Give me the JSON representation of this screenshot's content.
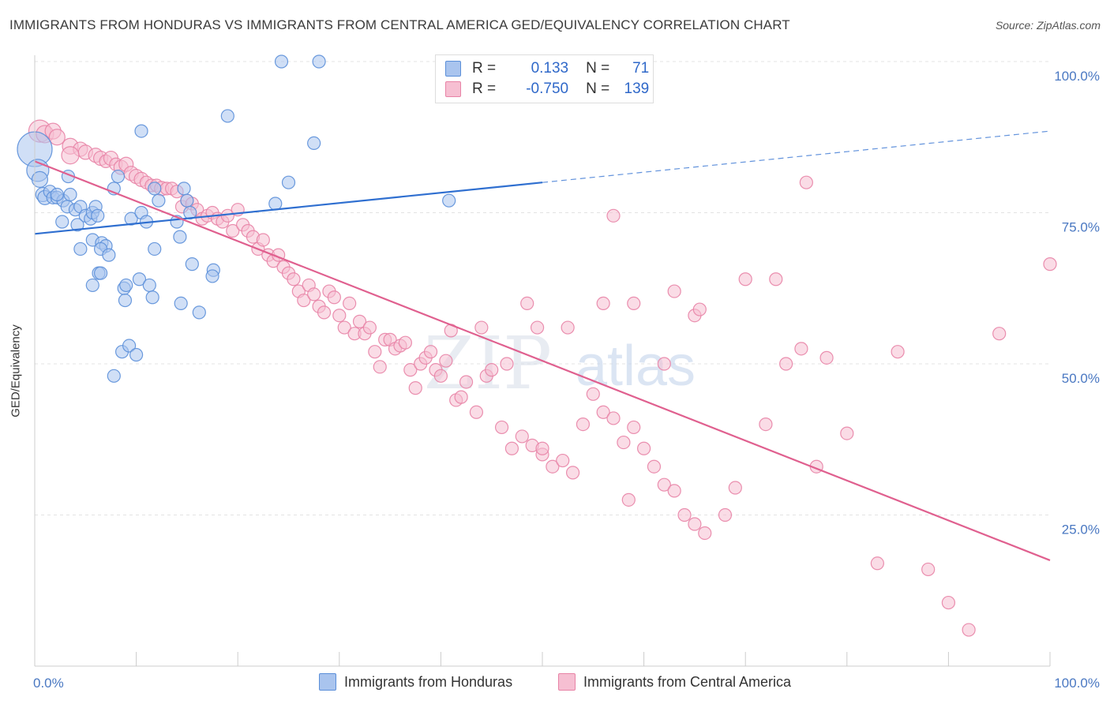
{
  "title": "IMMIGRANTS FROM HONDURAS VS IMMIGRANTS FROM CENTRAL AMERICA GED/EQUIVALENCY CORRELATION CHART",
  "source": "Source: ZipAtlas.com",
  "watermark": {
    "zip": "ZIP",
    "atlas": "atlas"
  },
  "stats": {
    "r_label": "R =",
    "n_label": "N =",
    "rows": [
      {
        "r": "0.133",
        "n": "71"
      },
      {
        "r": "-0.750",
        "n": "139"
      }
    ]
  },
  "legend": {
    "items": [
      {
        "label": "Immigrants from Honduras"
      },
      {
        "label": "Immigrants from Central America"
      }
    ]
  },
  "colors": {
    "blue_fill": "#a9c4ee",
    "blue_stroke": "#5b8fd9",
    "blue_line": "#2f6fd0",
    "pink_fill": "#f6bfd2",
    "pink_stroke": "#e883a6",
    "pink_line": "#e0608f",
    "tick_text": "#4a78c2",
    "grid": "#e3e3e3"
  },
  "chart_data": {
    "type": "scatter",
    "ylabel": "GED/Equivalency",
    "xlim": [
      0,
      100
    ],
    "ylim": [
      0,
      100
    ],
    "x_tick_labels": [
      "0.0%",
      "100.0%"
    ],
    "y_ticks": [
      {
        "value": 25,
        "label": "25.0%"
      },
      {
        "value": 50,
        "label": "50.0%"
      },
      {
        "value": 75,
        "label": "75.0%"
      },
      {
        "value": 100,
        "label": "100.0%"
      }
    ],
    "grid": true,
    "legend_position": "bottom",
    "series": [
      {
        "name": "Immigrants from Honduras",
        "color": "#5b8fd9",
        "trend": {
          "x": [
            0,
            50
          ],
          "y": [
            71.5,
            80
          ],
          "dashed_to": [
            100,
            88.5
          ]
        },
        "points": [
          [
            0.0,
            85.5,
            22
          ],
          [
            0.3,
            82,
            14
          ],
          [
            0.5,
            80.5,
            10
          ],
          [
            0.8,
            78,
            9
          ],
          [
            1.0,
            77.5,
            9
          ],
          [
            1.5,
            78.5,
            8
          ],
          [
            1.8,
            77.5,
            8
          ],
          [
            2.2,
            77.5,
            8
          ],
          [
            2.8,
            77,
            8
          ],
          [
            3.2,
            76,
            8
          ],
          [
            3.5,
            78,
            8
          ],
          [
            3.3,
            81,
            8
          ],
          [
            2.2,
            78,
            8
          ],
          [
            4.0,
            75.5,
            8
          ],
          [
            4.5,
            76,
            8
          ],
          [
            4.2,
            73,
            8
          ],
          [
            2.7,
            73.5,
            8
          ],
          [
            5.0,
            74.5,
            8
          ],
          [
            5.5,
            74,
            8
          ],
          [
            5.7,
            75,
            8
          ],
          [
            6.0,
            76,
            8
          ],
          [
            6.2,
            74.5,
            8
          ],
          [
            7.8,
            79,
            8
          ],
          [
            8.2,
            81,
            8
          ],
          [
            10.5,
            88.5,
            8
          ],
          [
            9.5,
            74,
            8
          ],
          [
            10.5,
            75,
            8
          ],
          [
            11.0,
            73.5,
            8
          ],
          [
            11.8,
            69,
            8
          ],
          [
            11.8,
            79,
            8
          ],
          [
            12.2,
            77,
            8
          ],
          [
            14.0,
            73.5,
            8
          ],
          [
            14.3,
            71,
            8
          ],
          [
            14.7,
            79,
            8
          ],
          [
            15.0,
            77,
            8
          ],
          [
            15.3,
            75,
            8
          ],
          [
            4.5,
            69,
            8
          ],
          [
            5.7,
            70.5,
            8
          ],
          [
            6.6,
            70,
            8
          ],
          [
            7.0,
            69.5,
            8
          ],
          [
            6.5,
            69,
            8
          ],
          [
            7.3,
            68,
            8
          ],
          [
            6.3,
            65,
            8
          ],
          [
            6.5,
            65,
            8
          ],
          [
            5.7,
            63,
            8
          ],
          [
            8.8,
            62.5,
            8
          ],
          [
            9.0,
            63,
            8
          ],
          [
            10.3,
            64,
            8
          ],
          [
            11.3,
            63,
            8
          ],
          [
            11.6,
            61,
            8
          ],
          [
            8.9,
            60.5,
            8
          ],
          [
            14.4,
            60,
            8
          ],
          [
            15.5,
            66.5,
            8
          ],
          [
            17.6,
            65.5,
            8
          ],
          [
            17.5,
            64.5,
            8
          ],
          [
            16.2,
            58.5,
            8
          ],
          [
            8.6,
            52,
            8
          ],
          [
            9.3,
            53,
            8
          ],
          [
            10.0,
            51.5,
            8
          ],
          [
            7.8,
            48,
            8
          ],
          [
            19.0,
            91,
            8
          ],
          [
            24.3,
            100,
            8
          ],
          [
            28.0,
            100,
            8
          ],
          [
            27.5,
            86.5,
            8
          ],
          [
            25.0,
            80,
            8
          ],
          [
            23.7,
            76.5,
            8
          ],
          [
            40.8,
            77,
            8
          ]
        ]
      },
      {
        "name": "Immigrants from Central America",
        "color": "#e883a6",
        "trend": {
          "x": [
            0,
            100
          ],
          "y": [
            83.5,
            17.5
          ]
        },
        "points": [
          [
            0.5,
            88.5,
            14
          ],
          [
            1.0,
            88,
            11
          ],
          [
            1.8,
            88.5,
            10
          ],
          [
            2.2,
            87.5,
            10
          ],
          [
            3.5,
            86,
            10
          ],
          [
            4.5,
            85.5,
            9
          ],
          [
            5.0,
            85,
            9
          ],
          [
            3.5,
            84.5,
            11
          ],
          [
            6.0,
            84.5,
            9
          ],
          [
            6.5,
            84,
            9
          ],
          [
            7.0,
            83.5,
            8
          ],
          [
            7.5,
            84,
            9
          ],
          [
            8.0,
            83,
            8
          ],
          [
            8.5,
            82.5,
            9
          ],
          [
            9.0,
            83,
            9
          ],
          [
            9.5,
            81.5,
            9
          ],
          [
            10.0,
            81,
            9
          ],
          [
            10.5,
            80.5,
            9
          ],
          [
            11.0,
            80,
            8
          ],
          [
            11.5,
            79.5,
            8
          ],
          [
            12.0,
            79.5,
            8
          ],
          [
            12.5,
            79,
            9
          ],
          [
            13.0,
            79,
            8
          ],
          [
            13.5,
            79,
            8
          ],
          [
            14.0,
            78.5,
            8
          ],
          [
            14.5,
            76,
            8
          ],
          [
            15.0,
            77,
            8
          ],
          [
            15.5,
            76.5,
            8
          ],
          [
            16.0,
            75.5,
            8
          ],
          [
            16.5,
            74,
            8
          ],
          [
            17.0,
            74.5,
            8
          ],
          [
            17.5,
            75,
            8
          ],
          [
            18.0,
            74,
            8
          ],
          [
            18.5,
            73.5,
            8
          ],
          [
            19.0,
            74.5,
            8
          ],
          [
            19.5,
            72,
            8
          ],
          [
            20.0,
            75.5,
            8
          ],
          [
            20.5,
            73,
            8
          ],
          [
            21.0,
            72,
            8
          ],
          [
            21.5,
            71,
            8
          ],
          [
            22.0,
            69,
            8
          ],
          [
            22.5,
            70.5,
            8
          ],
          [
            23.0,
            68,
            8
          ],
          [
            23.5,
            67,
            8
          ],
          [
            24.0,
            68,
            8
          ],
          [
            24.5,
            66,
            8
          ],
          [
            25.0,
            65,
            8
          ],
          [
            25.5,
            64,
            8
          ],
          [
            26.0,
            62,
            8
          ],
          [
            26.5,
            60.5,
            8
          ],
          [
            27.0,
            63,
            8
          ],
          [
            27.5,
            61.5,
            8
          ],
          [
            28.0,
            59.5,
            8
          ],
          [
            28.5,
            58.5,
            8
          ],
          [
            29.0,
            62,
            8
          ],
          [
            29.5,
            61,
            8
          ],
          [
            30.0,
            58,
            8
          ],
          [
            30.5,
            56,
            8
          ],
          [
            31.0,
            60,
            8
          ],
          [
            31.5,
            55,
            8
          ],
          [
            32.0,
            57,
            8
          ],
          [
            32.5,
            55,
            8
          ],
          [
            33.0,
            56,
            8
          ],
          [
            33.5,
            52,
            8
          ],
          [
            34.0,
            49.5,
            8
          ],
          [
            34.5,
            54,
            8
          ],
          [
            35.0,
            54,
            8
          ],
          [
            35.5,
            52.5,
            8
          ],
          [
            36.0,
            53,
            8
          ],
          [
            36.5,
            53.5,
            8
          ],
          [
            37.0,
            49,
            8
          ],
          [
            37.5,
            46,
            8
          ],
          [
            38.0,
            50,
            8
          ],
          [
            38.5,
            51,
            8
          ],
          [
            39.0,
            52,
            8
          ],
          [
            39.5,
            49,
            8
          ],
          [
            40.0,
            48,
            8
          ],
          [
            40.5,
            50.5,
            8
          ],
          [
            41.0,
            55.5,
            8
          ],
          [
            41.5,
            44,
            8
          ],
          [
            42.0,
            44.5,
            8
          ],
          [
            42.5,
            47,
            8
          ],
          [
            43.5,
            42,
            8
          ],
          [
            44.5,
            48,
            8
          ],
          [
            45.0,
            49,
            8
          ],
          [
            46.0,
            39.5,
            8
          ],
          [
            47.0,
            36,
            8
          ],
          [
            48.0,
            38,
            8
          ],
          [
            49.0,
            36.5,
            8
          ],
          [
            50.0,
            35,
            8
          ],
          [
            51.0,
            33,
            8
          ],
          [
            52.0,
            34,
            8
          ],
          [
            53.0,
            32,
            8
          ],
          [
            54.0,
            40,
            8
          ],
          [
            55.0,
            45,
            8
          ],
          [
            56.0,
            42,
            8
          ],
          [
            57.0,
            41,
            8
          ],
          [
            58.0,
            37,
            8
          ],
          [
            59.0,
            39.5,
            8
          ],
          [
            60.0,
            36,
            8
          ],
          [
            61.0,
            33,
            8
          ],
          [
            62.0,
            30,
            8
          ],
          [
            63.0,
            29,
            8
          ],
          [
            64.0,
            25,
            8
          ],
          [
            65.0,
            23.5,
            8
          ],
          [
            66.0,
            22,
            8
          ],
          [
            48.5,
            60,
            8
          ],
          [
            56.0,
            60,
            8
          ],
          [
            63.0,
            62,
            8
          ],
          [
            65.0,
            58,
            8
          ],
          [
            70.0,
            64,
            8
          ],
          [
            73.0,
            64,
            8
          ],
          [
            74.0,
            50,
            8
          ],
          [
            76.0,
            80,
            8
          ],
          [
            78.0,
            51,
            8
          ],
          [
            80.0,
            38.5,
            8
          ],
          [
            83.0,
            17,
            8
          ],
          [
            85.0,
            52,
            8
          ],
          [
            88.0,
            16,
            8
          ],
          [
            90.0,
            10.5,
            8
          ],
          [
            92.0,
            6,
            8
          ],
          [
            95.0,
            55,
            8
          ],
          [
            100.0,
            66.5,
            8
          ],
          [
            57.0,
            74.5,
            8
          ],
          [
            59.0,
            60,
            8
          ],
          [
            44.0,
            56,
            8
          ],
          [
            46.5,
            50,
            8
          ],
          [
            52.5,
            56,
            8
          ],
          [
            49.5,
            56,
            8
          ],
          [
            62.0,
            50,
            8
          ],
          [
            65.5,
            59,
            8
          ],
          [
            75.5,
            52.5,
            8
          ],
          [
            77.0,
            33,
            8
          ],
          [
            68.0,
            25,
            8
          ],
          [
            72.0,
            40,
            8
          ],
          [
            58.5,
            27.5,
            8
          ],
          [
            69.0,
            29.5,
            8
          ],
          [
            56.0,
            100,
            8
          ],
          [
            50.0,
            36,
            8
          ]
        ]
      }
    ]
  }
}
